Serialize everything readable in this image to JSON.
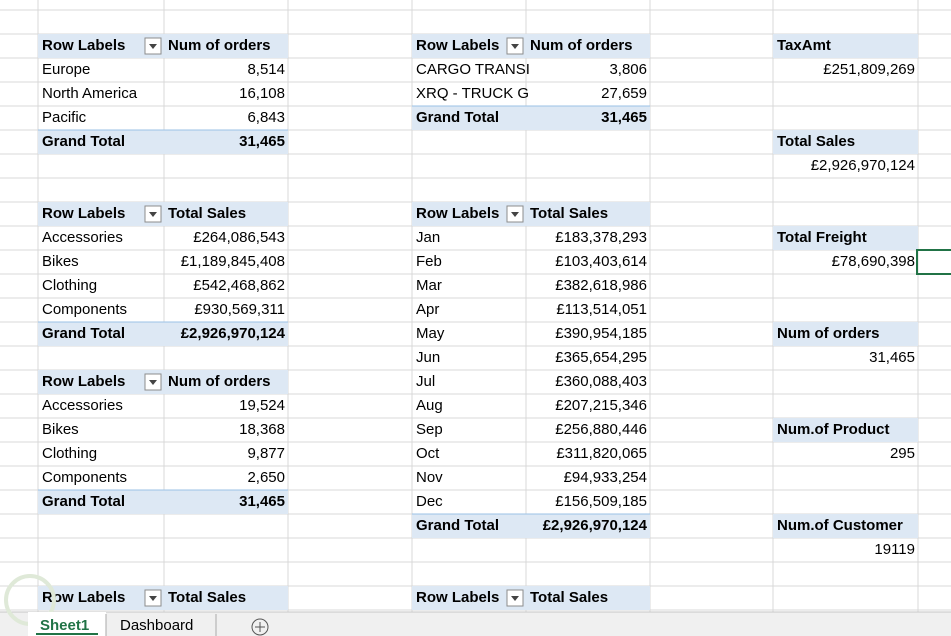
{
  "pivots": [
    {
      "header": [
        "Row Labels",
        "Num of orders"
      ],
      "rows": [
        [
          "Europe",
          "8,514"
        ],
        [
          "North America",
          "16,108"
        ],
        [
          "Pacific",
          "6,843"
        ]
      ],
      "total": [
        "Grand Total",
        "31,465"
      ]
    },
    {
      "header": [
        "Row Labels",
        "Total Sales"
      ],
      "rows": [
        [
          "Accessories",
          "£264,086,543"
        ],
        [
          "Bikes",
          "£1,189,845,408"
        ],
        [
          "Clothing",
          "£542,468,862"
        ],
        [
          "Components",
          "£930,569,311"
        ]
      ],
      "total": [
        "Grand Total",
        "£2,926,970,124"
      ]
    },
    {
      "header": [
        "Row Labels",
        "Num of orders"
      ],
      "rows": [
        [
          "Accessories",
          "19,524"
        ],
        [
          "Bikes",
          "18,368"
        ],
        [
          "Clothing",
          "9,877"
        ],
        [
          "Components",
          "2,650"
        ]
      ],
      "total": [
        "Grand Total",
        "31,465"
      ]
    },
    {
      "header": [
        "Row Labels",
        "Num of orders"
      ],
      "rows": [
        [
          "CARGO TRANSI",
          "3,806"
        ],
        [
          "XRQ - TRUCK G",
          "27,659"
        ]
      ],
      "total": [
        "Grand Total",
        "31,465"
      ]
    },
    {
      "header": [
        "Row Labels",
        "Total Sales"
      ],
      "rows": [
        [
          "Jan",
          "£183,378,293"
        ],
        [
          "Feb",
          "£103,403,614"
        ],
        [
          "Mar",
          "£382,618,986"
        ],
        [
          "Apr",
          "£113,514,051"
        ],
        [
          "May",
          "£390,954,185"
        ],
        [
          "Jun",
          "£365,654,295"
        ],
        [
          "Jul",
          "£360,088,403"
        ],
        [
          "Aug",
          "£207,215,346"
        ],
        [
          "Sep",
          "£256,880,446"
        ],
        [
          "Oct",
          "£311,820,065"
        ],
        [
          "Nov",
          "£94,933,254"
        ],
        [
          "Dec",
          "£156,509,185"
        ]
      ],
      "total": [
        "Grand Total",
        "£2,926,970,124"
      ]
    },
    {
      "header": [
        "Row Labels",
        "Total Sales"
      ]
    },
    {
      "header": [
        "Row Labels",
        "Total Sales"
      ]
    }
  ],
  "cards": [
    {
      "label": "TaxAmt",
      "value": "£251,809,269"
    },
    {
      "label": "Total Sales",
      "value": "£2,926,970,124"
    },
    {
      "label": "Total Freight",
      "value": "£78,690,398"
    },
    {
      "label": "Num of orders",
      "value": "31,465"
    },
    {
      "label": "Num.of Product",
      "value": "295"
    },
    {
      "label": "Num.of Customer",
      "value": "19119"
    }
  ],
  "tabs": [
    "Sheet1",
    "Dashboard"
  ]
}
